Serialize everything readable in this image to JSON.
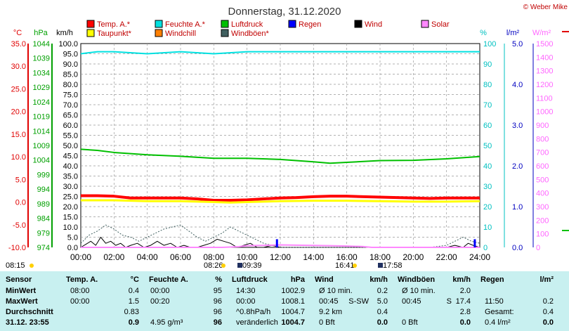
{
  "title": "Donnerstag, 31.12.2020",
  "credit": "© Weber Mike",
  "axis_units": {
    "temp": "°C",
    "pressure": "hPa",
    "wind": "km/h",
    "humidity": "%",
    "rain": "l/m²",
    "solar": "W/m²"
  },
  "legend": [
    {
      "label": "Temp. A.*",
      "color": "#ff0000"
    },
    {
      "label": "Feuchte A.*",
      "color": "#00e0e0"
    },
    {
      "label": "Luftdruck",
      "color": "#00c000"
    },
    {
      "label": "Regen",
      "color": "#0000ff"
    },
    {
      "label": "Wind",
      "color": "#000000"
    },
    {
      "label": "Solar",
      "color": "#ff88ff"
    },
    {
      "label": "Taupunkt*",
      "color": "#ffff00"
    },
    {
      "label": "Windchill",
      "color": "#ff8000"
    },
    {
      "label": "Windböen*",
      "color": "#406060"
    }
  ],
  "colors": {
    "temp": "#ff0000",
    "humidity": "#00e0e0",
    "pressure": "#00c000",
    "rain": "#0000ff",
    "wind": "#000000",
    "solar": "#ff88ff",
    "dewpoint": "#ffff00",
    "gust": "#406060",
    "table_bg": "#c8f0f0"
  },
  "sun_events": [
    {
      "label": "08:15",
      "icon": "sun-icon"
    },
    {
      "label": "08:26",
      "icon": "sun-icon"
    },
    {
      "label": "09:39",
      "icon": "moon-icon"
    },
    {
      "label": "16:41",
      "icon": "sun-icon"
    },
    {
      "label": "17:58",
      "icon": "moon-icon"
    }
  ],
  "chart_data": {
    "type": "line",
    "title": "Donnerstag, 31.12.2020",
    "x_ticks": [
      "00:00",
      "02:00",
      "04:00",
      "06:00",
      "08:00",
      "10:00",
      "12:00",
      "14:00",
      "16:00",
      "18:00",
      "20:00",
      "22:00",
      "24:00"
    ],
    "axes": {
      "temp": {
        "ylim": [
          -10,
          35
        ],
        "ticks": [
          "35.0",
          "30.0",
          "25.0",
          "20.0",
          "15.0",
          "10.0",
          "5.0",
          "0.0",
          "-5.0",
          "-10.0"
        ]
      },
      "pressure": {
        "ylim": [
          974,
          1044
        ],
        "ticks": [
          "1044",
          "1039",
          "1034",
          "1029",
          "1024",
          "1019",
          "1014",
          "1009",
          "1004",
          "999",
          "994",
          "989",
          "984",
          "979",
          "974"
        ]
      },
      "wind": {
        "ylim": [
          0,
          100
        ],
        "ticks": [
          "100.0",
          "95.0",
          "90.0",
          "85.0",
          "80.0",
          "75.0",
          "70.0",
          "65.0",
          "60.0",
          "55.0",
          "50.0",
          "45.0",
          "40.0",
          "35.0",
          "30.0",
          "25.0",
          "20.0",
          "15.0",
          "10.0",
          "5.0",
          "0.0"
        ]
      },
      "humidity": {
        "ylim": [
          0,
          100
        ],
        "ticks": [
          "100",
          "90",
          "80",
          "70",
          "60",
          "50",
          "40",
          "30",
          "20",
          "10",
          "0"
        ]
      },
      "rain": {
        "ylim": [
          0,
          5
        ],
        "ticks": [
          "5.0",
          "4.0",
          "3.0",
          "2.0",
          "1.0",
          "0.0"
        ]
      },
      "solar": {
        "ylim": [
          0,
          1500
        ],
        "ticks": [
          "1500",
          "1400",
          "1300",
          "1200",
          "1100",
          "1000",
          "900",
          "800",
          "700",
          "600",
          "500",
          "400",
          "300",
          "200",
          "100",
          "0"
        ]
      }
    },
    "series": [
      {
        "name": "Temp. A.*",
        "axis": "temp",
        "color": "#ff0000",
        "width": 4,
        "x": [
          0,
          1,
          2,
          3,
          4,
          5,
          6,
          7,
          8,
          9,
          10,
          11,
          12,
          13,
          14,
          15,
          16,
          17,
          18,
          19,
          20,
          21,
          22,
          23,
          24
        ],
        "y": [
          1.4,
          1.4,
          1.3,
          0.9,
          0.9,
          0.9,
          0.9,
          0.7,
          0.4,
          0.4,
          0.5,
          0.7,
          0.9,
          1.0,
          1.2,
          1.3,
          1.3,
          1.2,
          1.1,
          1.0,
          0.9,
          0.8,
          0.9,
          0.9,
          0.9
        ]
      },
      {
        "name": "Taupunkt*",
        "axis": "temp",
        "color": "#ffff00",
        "width": 3,
        "x": [
          0,
          2,
          4,
          6,
          8,
          9,
          10,
          12,
          14,
          16,
          18,
          20,
          22,
          24
        ],
        "y": [
          0.4,
          0.4,
          0.2,
          0.2,
          0.0,
          -0.1,
          0.0,
          0.2,
          0.3,
          0.3,
          0.2,
          0.1,
          0.1,
          0.2
        ]
      },
      {
        "name": "Feuchte A.*",
        "axis": "humidity",
        "color": "#00e0e0",
        "width": 2,
        "x": [
          0,
          1,
          2,
          4,
          6,
          8,
          10,
          12,
          14,
          16,
          18,
          20,
          22,
          24
        ],
        "y": [
          95,
          96,
          96,
          95,
          96,
          95,
          96,
          96,
          96,
          96,
          96,
          96,
          96,
          96
        ]
      },
      {
        "name": "Luftdruck",
        "axis": "pressure",
        "color": "#00c000",
        "width": 2,
        "x": [
          0,
          1,
          2,
          4,
          6,
          8,
          10,
          12,
          14,
          15,
          16,
          18,
          20,
          22,
          24
        ],
        "y": [
          1007.7,
          1007.3,
          1006.6,
          1005.8,
          1005.3,
          1004.6,
          1004.6,
          1004.2,
          1003.4,
          1002.9,
          1003.2,
          1003.8,
          1003.9,
          1004.4,
          1005.2
        ]
      },
      {
        "name": "Wind",
        "axis": "wind",
        "color": "#000000",
        "width": 1,
        "x": [
          0,
          0.3,
          0.6,
          0.9,
          1.2,
          1.5,
          1.8,
          2.1,
          2.4,
          2.7,
          3,
          3.4,
          3.8,
          4.2,
          4.6,
          5,
          5.4,
          5.8,
          6.2,
          6.6,
          7,
          7.4,
          7.8,
          8.2,
          8.6,
          9,
          9.4,
          9.8,
          10.2,
          10.6,
          11,
          11.5,
          12,
          13,
          14,
          15,
          16,
          17,
          18,
          19,
          20,
          21,
          22,
          22.5,
          23,
          23.3,
          23.6,
          24
        ],
        "y": [
          0,
          1.5,
          3,
          1,
          5,
          2,
          3,
          1,
          2,
          0,
          1,
          2,
          0,
          1,
          3,
          1,
          2,
          0,
          1,
          0,
          0,
          1,
          2,
          4,
          3,
          2,
          0,
          1,
          2,
          0,
          0,
          1,
          0,
          0,
          0,
          0,
          0,
          0,
          0,
          0,
          0,
          0,
          0,
          1,
          0,
          2,
          1,
          0
        ]
      },
      {
        "name": "Windböen*",
        "axis": "wind",
        "color": "#406060",
        "width": 1,
        "dashed": true,
        "x": [
          0,
          0.5,
          1,
          1.5,
          2,
          2.5,
          3,
          3.5,
          4,
          4.5,
          5,
          5.5,
          6,
          6.5,
          7,
          7.5,
          8,
          8.5,
          9,
          9.5,
          10,
          10.5,
          11,
          11.5,
          12,
          13,
          14,
          15,
          16,
          17,
          18,
          19,
          20,
          21,
          22,
          22.5,
          23,
          23.5,
          24
        ],
        "y": [
          2,
          6,
          8,
          11,
          9,
          6,
          5,
          3,
          5,
          7,
          9,
          10,
          11,
          8,
          5,
          3,
          5,
          7,
          10,
          8,
          6,
          4,
          2,
          1,
          0,
          0,
          0,
          0,
          0,
          0,
          0,
          0,
          0,
          0,
          1,
          3,
          5,
          3,
          2
        ]
      },
      {
        "name": "Solar",
        "axis": "solar",
        "color": "#ff88ff",
        "width": 2,
        "x": [
          0,
          8.5,
          9.5,
          10,
          11,
          12,
          13,
          14,
          15,
          16,
          17,
          17.5,
          24
        ],
        "y": [
          0,
          0,
          5,
          12,
          15,
          18,
          16,
          14,
          12,
          10,
          6,
          0,
          0
        ]
      }
    ],
    "rain_bars": [
      {
        "x": 11.8,
        "value": 0.2
      },
      {
        "x": 23.7,
        "value": 0.2
      }
    ]
  },
  "table": {
    "headers": {
      "sensor": "Sensor",
      "temp": "Temp. A.",
      "temp_unit": "°C",
      "hum": "Feuchte A.",
      "hum_unit": "%",
      "press": "Luftdruck",
      "press_unit": "hPa",
      "wind": "Wind",
      "wind_unit": "km/h",
      "gust": "Windböen",
      "gust_unit": "km/h",
      "rain": "Regen",
      "rain_unit": "l/m²"
    },
    "row_labels": [
      "MinWert",
      "MaxWert",
      "Durchschnitt",
      "31.12. 23:55"
    ],
    "rows": [
      {
        "t_time": "08:00",
        "t_val": "0.4",
        "h_time": "00:00",
        "h_val": "95",
        "p_time": "14:30",
        "p_val": "1002.9",
        "w_time": "Ø 10 min.",
        "w_dir": "",
        "w_val": "0.2",
        "g_time": "Ø 10 min.",
        "g_dir": "",
        "g_val": "2.0",
        "r_time": "",
        "r_val": ""
      },
      {
        "t_time": "00:00",
        "t_val": "1.5",
        "h_time": "00:20",
        "h_val": "96",
        "p_time": "00:00",
        "p_val": "1008.1",
        "w_time": "00:45",
        "w_dir": "S-SW",
        "w_val": "5.0",
        "g_time": "00:45",
        "g_dir": "S",
        "g_val": "17.4",
        "r_time": "11:50",
        "r_val": "0.2"
      },
      {
        "t_time": "",
        "t_val": "0.83",
        "h_time": "",
        "h_val": "96",
        "p_time": "^0.8hPa/h",
        "p_val": "1004.7",
        "w_time": "9.2 km",
        "w_dir": "",
        "w_val": "0.4",
        "g_time": "",
        "g_dir": "",
        "g_val": "2.8",
        "r_time": "Gesamt:",
        "r_val": "0.4"
      },
      {
        "t_time": "",
        "t_val": "0.9",
        "h_time": "4.95 g/m³",
        "h_val": "96",
        "p_time": "veränderlich",
        "p_val": "1004.7",
        "w_time": "0 Bft",
        "w_dir": "",
        "w_val": "0.0",
        "g_time": "0 Bft",
        "g_dir": "",
        "g_val": "0.0",
        "r_time": "0.4 l/m²",
        "r_val": "0.0"
      }
    ]
  }
}
